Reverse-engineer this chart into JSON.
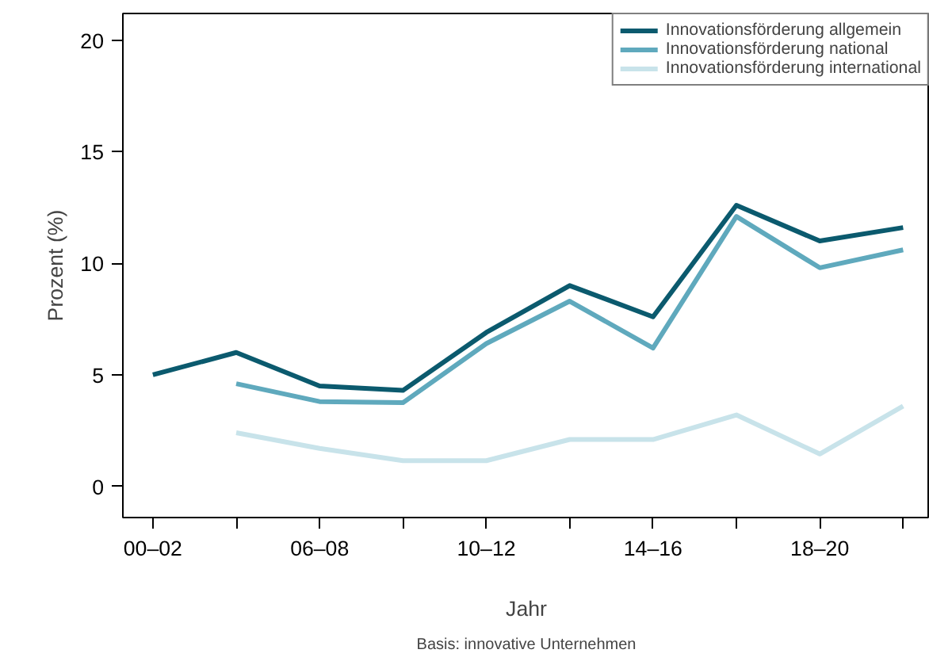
{
  "chart_data": {
    "type": "line",
    "xlabel": "Jahr",
    "ylabel": "Prozent (%)",
    "categories": [
      "00–02",
      null,
      "06–08",
      null,
      "10–12",
      null,
      "14–16",
      null,
      "18–20",
      null
    ],
    "series": [
      {
        "name": "Innovationsförderung allgemein",
        "color": "#0b5a6e",
        "values": [
          5.0,
          6.0,
          4.5,
          4.3,
          6.9,
          9.0,
          7.6,
          12.6,
          11.0,
          11.6
        ]
      },
      {
        "name": "Innovationsförderung national",
        "color": "#5fa9bd",
        "values": [
          null,
          4.6,
          3.8,
          3.75,
          6.4,
          8.3,
          6.2,
          12.1,
          9.8,
          10.6
        ]
      },
      {
        "name": "Innovationsförderung international",
        "color": "#c8e3ea",
        "values": [
          null,
          2.4,
          1.7,
          1.15,
          1.15,
          2.1,
          2.1,
          3.2,
          1.45,
          3.6
        ]
      }
    ],
    "ylim": [
      -1.4,
      21.2
    ],
    "yticks": [
      0,
      5,
      10,
      15,
      20
    ],
    "grid": false,
    "legend": "top right",
    "marker": "none",
    "line_style": "solid",
    "annotations": [
      "Basis: innovative Unternehmen"
    ]
  }
}
